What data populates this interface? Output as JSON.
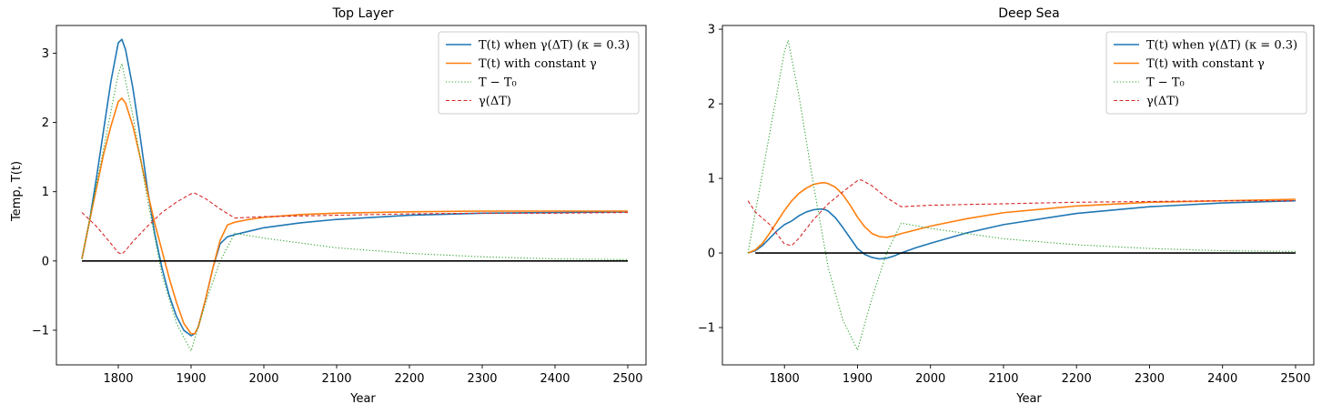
{
  "chart_data": [
    {
      "type": "line",
      "title": "Top Layer",
      "xlabel": "Year",
      "ylabel": "Temp, T(t)",
      "xlim": [
        1715,
        2525
      ],
      "ylim": [
        -1.5,
        3.4
      ],
      "xticks": [
        1800,
        1900,
        2000,
        2100,
        2200,
        2300,
        2400,
        2500
      ],
      "xtick_labels": [
        "1800",
        "1900",
        "2000",
        "2100",
        "2200",
        "2300",
        "2400",
        "2500"
      ],
      "yticks": [
        -1,
        0,
        1,
        2,
        3
      ],
      "ytick_labels": [
        "−1",
        "0",
        "1",
        "2",
        "3"
      ],
      "legend_position": "top-right",
      "series": [
        {
          "name": "T(t) when γ(ΔT) (κ = 0.3)",
          "color": "#1f77b4",
          "style": "solid",
          "x": [
            1750,
            1760,
            1770,
            1780,
            1790,
            1800,
            1805,
            1810,
            1820,
            1830,
            1840,
            1850,
            1860,
            1870,
            1880,
            1890,
            1900,
            1905,
            1910,
            1920,
            1930,
            1940,
            1950,
            1960,
            1980,
            2000,
            2050,
            2100,
            2200,
            2300,
            2400,
            2500
          ],
          "y": [
            0.03,
            0.55,
            1.2,
            1.9,
            2.6,
            3.15,
            3.2,
            3.05,
            2.5,
            1.8,
            1.05,
            0.4,
            -0.1,
            -0.5,
            -0.8,
            -1.0,
            -1.08,
            -1.05,
            -0.95,
            -0.55,
            -0.1,
            0.25,
            0.35,
            0.38,
            0.43,
            0.48,
            0.55,
            0.6,
            0.66,
            0.69,
            0.7,
            0.71
          ]
        },
        {
          "name": "T(t) with constant γ",
          "color": "#ff7f0e",
          "style": "solid",
          "x": [
            1750,
            1760,
            1770,
            1780,
            1790,
            1800,
            1805,
            1810,
            1820,
            1830,
            1840,
            1850,
            1860,
            1870,
            1880,
            1890,
            1900,
            1905,
            1910,
            1920,
            1930,
            1940,
            1950,
            1960,
            1980,
            2000,
            2050,
            2100,
            2200,
            2300,
            2400,
            2500
          ],
          "y": [
            0.03,
            0.55,
            1.05,
            1.55,
            1.95,
            2.3,
            2.35,
            2.28,
            1.95,
            1.5,
            1.0,
            0.55,
            0.15,
            -0.25,
            -0.6,
            -0.9,
            -1.05,
            -1.05,
            -0.95,
            -0.55,
            -0.1,
            0.3,
            0.52,
            0.56,
            0.6,
            0.63,
            0.67,
            0.69,
            0.71,
            0.72,
            0.72,
            0.72
          ]
        },
        {
          "name": "T − T₀",
          "color": "#2ca02c",
          "style": "dotted",
          "x": [
            1750,
            1800,
            1805,
            1820,
            1840,
            1860,
            1880,
            1900,
            1920,
            1940,
            1960,
            2000,
            2100,
            2200,
            2300,
            2400,
            2500
          ],
          "y": [
            0.03,
            2.7,
            2.85,
            2.1,
            0.9,
            -0.2,
            -0.9,
            -1.3,
            -0.6,
            0.0,
            0.4,
            0.33,
            0.19,
            0.11,
            0.06,
            0.03,
            0.02
          ]
        },
        {
          "name": "γ(ΔT)",
          "color": "#d62728",
          "style": "dashed",
          "x": [
            1750,
            1770,
            1790,
            1800,
            1805,
            1810,
            1820,
            1840,
            1860,
            1880,
            1900,
            1905,
            1920,
            1940,
            1960,
            2000,
            2100,
            2200,
            2300,
            2400,
            2500
          ],
          "y": [
            0.7,
            0.5,
            0.25,
            0.12,
            0.1,
            0.15,
            0.28,
            0.5,
            0.7,
            0.85,
            0.97,
            0.98,
            0.9,
            0.75,
            0.62,
            0.64,
            0.66,
            0.68,
            0.69,
            0.69,
            0.7
          ]
        },
        {
          "name": "",
          "color": "#000000",
          "style": "solid",
          "x": [
            1750,
            2500
          ],
          "y": [
            0,
            0
          ]
        }
      ]
    },
    {
      "type": "line",
      "title": "Deep Sea",
      "xlabel": "Year",
      "ylabel": "",
      "xlim": [
        1715,
        2525
      ],
      "ylim": [
        -1.5,
        3.05
      ],
      "xticks": [
        1800,
        1900,
        2000,
        2100,
        2200,
        2300,
        2400,
        2500
      ],
      "xtick_labels": [
        "1800",
        "1900",
        "2000",
        "2100",
        "2200",
        "2300",
        "2400",
        "2500"
      ],
      "yticks": [
        -1,
        0,
        1,
        2,
        3
      ],
      "ytick_labels": [
        "−1",
        "0",
        "1",
        "2",
        "3"
      ],
      "legend_position": "top-right",
      "series": [
        {
          "name": "T(t) when γ(ΔT) (κ = 0.3)",
          "color": "#1f77b4",
          "style": "solid",
          "x": [
            1750,
            1760,
            1770,
            1780,
            1790,
            1800,
            1810,
            1820,
            1830,
            1840,
            1850,
            1856,
            1860,
            1870,
            1880,
            1890,
            1900,
            1910,
            1920,
            1930,
            1940,
            1950,
            1960,
            1980,
            2000,
            2050,
            2100,
            2200,
            2300,
            2400,
            2500
          ],
          "y": [
            0.0,
            0.03,
            0.1,
            0.2,
            0.3,
            0.38,
            0.43,
            0.5,
            0.55,
            0.58,
            0.59,
            0.58,
            0.56,
            0.47,
            0.34,
            0.2,
            0.06,
            -0.02,
            -0.06,
            -0.08,
            -0.07,
            -0.04,
            0.0,
            0.07,
            0.13,
            0.27,
            0.38,
            0.53,
            0.62,
            0.67,
            0.7
          ]
        },
        {
          "name": "T(t) with constant γ",
          "color": "#ff7f0e",
          "style": "solid",
          "x": [
            1750,
            1760,
            1770,
            1780,
            1790,
            1800,
            1810,
            1820,
            1830,
            1840,
            1850,
            1856,
            1860,
            1870,
            1880,
            1890,
            1900,
            1910,
            1920,
            1930,
            1940,
            1950,
            1960,
            1980,
            2000,
            2050,
            2100,
            2200,
            2300,
            2400,
            2500
          ],
          "y": [
            0.0,
            0.04,
            0.13,
            0.27,
            0.42,
            0.57,
            0.7,
            0.8,
            0.87,
            0.92,
            0.94,
            0.94,
            0.93,
            0.88,
            0.78,
            0.64,
            0.48,
            0.35,
            0.26,
            0.22,
            0.21,
            0.23,
            0.26,
            0.31,
            0.36,
            0.46,
            0.54,
            0.63,
            0.68,
            0.7,
            0.72
          ]
        },
        {
          "name": "T − T₀",
          "color": "#2ca02c",
          "style": "dotted",
          "x": [
            1750,
            1800,
            1805,
            1820,
            1840,
            1860,
            1880,
            1900,
            1920,
            1940,
            1960,
            2000,
            2100,
            2200,
            2300,
            2400,
            2500
          ],
          "y": [
            0.0,
            2.7,
            2.85,
            2.1,
            0.9,
            -0.2,
            -0.9,
            -1.3,
            -0.6,
            0.0,
            0.4,
            0.33,
            0.19,
            0.11,
            0.06,
            0.03,
            0.02
          ]
        },
        {
          "name": "γ(ΔT)",
          "color": "#d62728",
          "style": "dashed",
          "x": [
            1750,
            1760,
            1780,
            1800,
            1810,
            1820,
            1840,
            1860,
            1880,
            1900,
            1905,
            1920,
            1940,
            1960,
            2000,
            2100,
            2200,
            2300,
            2400,
            2500
          ],
          "y": [
            0.7,
            0.55,
            0.38,
            0.12,
            0.1,
            0.2,
            0.45,
            0.66,
            0.82,
            0.97,
            0.98,
            0.9,
            0.74,
            0.62,
            0.64,
            0.66,
            0.68,
            0.69,
            0.7,
            0.7
          ]
        },
        {
          "name": "",
          "color": "#000000",
          "style": "solid",
          "x": [
            1760,
            2500
          ],
          "y": [
            0,
            0
          ]
        }
      ]
    }
  ],
  "legend_entries": [
    {
      "label": "T(t) when γ(ΔT) (κ = 0.3)",
      "color": "#1f77b4",
      "style": "solid"
    },
    {
      "label": "T(t) with constant γ",
      "color": "#ff7f0e",
      "style": "solid"
    },
    {
      "label": "T − T₀",
      "color": "#2ca02c",
      "style": "dotted"
    },
    {
      "label": "γ(ΔT)",
      "color": "#d62728",
      "style": "dashed"
    }
  ]
}
